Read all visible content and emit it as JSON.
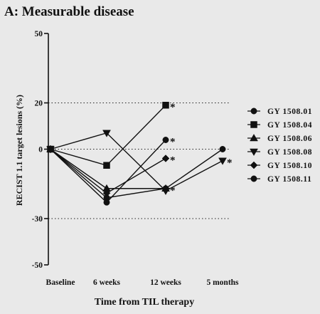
{
  "chart_data": {
    "type": "line",
    "title": "A: Measurable disease",
    "xlabel": "Time from TIL therapy",
    "ylabel": "RECIST 1.1 target lesions (%)",
    "categories": [
      "Baseline",
      "6 weeks",
      "12 weeks",
      "5 months"
    ],
    "ylim": [
      -50,
      50
    ],
    "yticks": [
      50,
      20,
      0,
      -30,
      -50
    ],
    "reference_lines": [
      20,
      0,
      -30
    ],
    "legend_position": "right",
    "series": [
      {
        "name": "GY 1508.01",
        "marker": "circle",
        "values": [
          0,
          -21,
          -17,
          0
        ],
        "star_after": null
      },
      {
        "name": "GY 1508.04",
        "marker": "square",
        "values": [
          0,
          -7,
          19,
          null
        ],
        "star_after": 2
      },
      {
        "name": "GY 1508.06",
        "marker": "triangle-up",
        "values": [
          0,
          -17,
          -17,
          null
        ],
        "star_after": 2
      },
      {
        "name": "GY 1508.08",
        "marker": "triangle-down",
        "values": [
          0,
          7,
          -18,
          -5
        ],
        "star_after": 3
      },
      {
        "name": "GY 1508.10",
        "marker": "diamond",
        "values": [
          0,
          -19,
          -4,
          null
        ],
        "star_after": 2
      },
      {
        "name": "GY 1508.11",
        "marker": "circle",
        "values": [
          0,
          -23,
          4,
          null
        ],
        "star_after": 2
      }
    ],
    "annotation_symbol": "*"
  }
}
